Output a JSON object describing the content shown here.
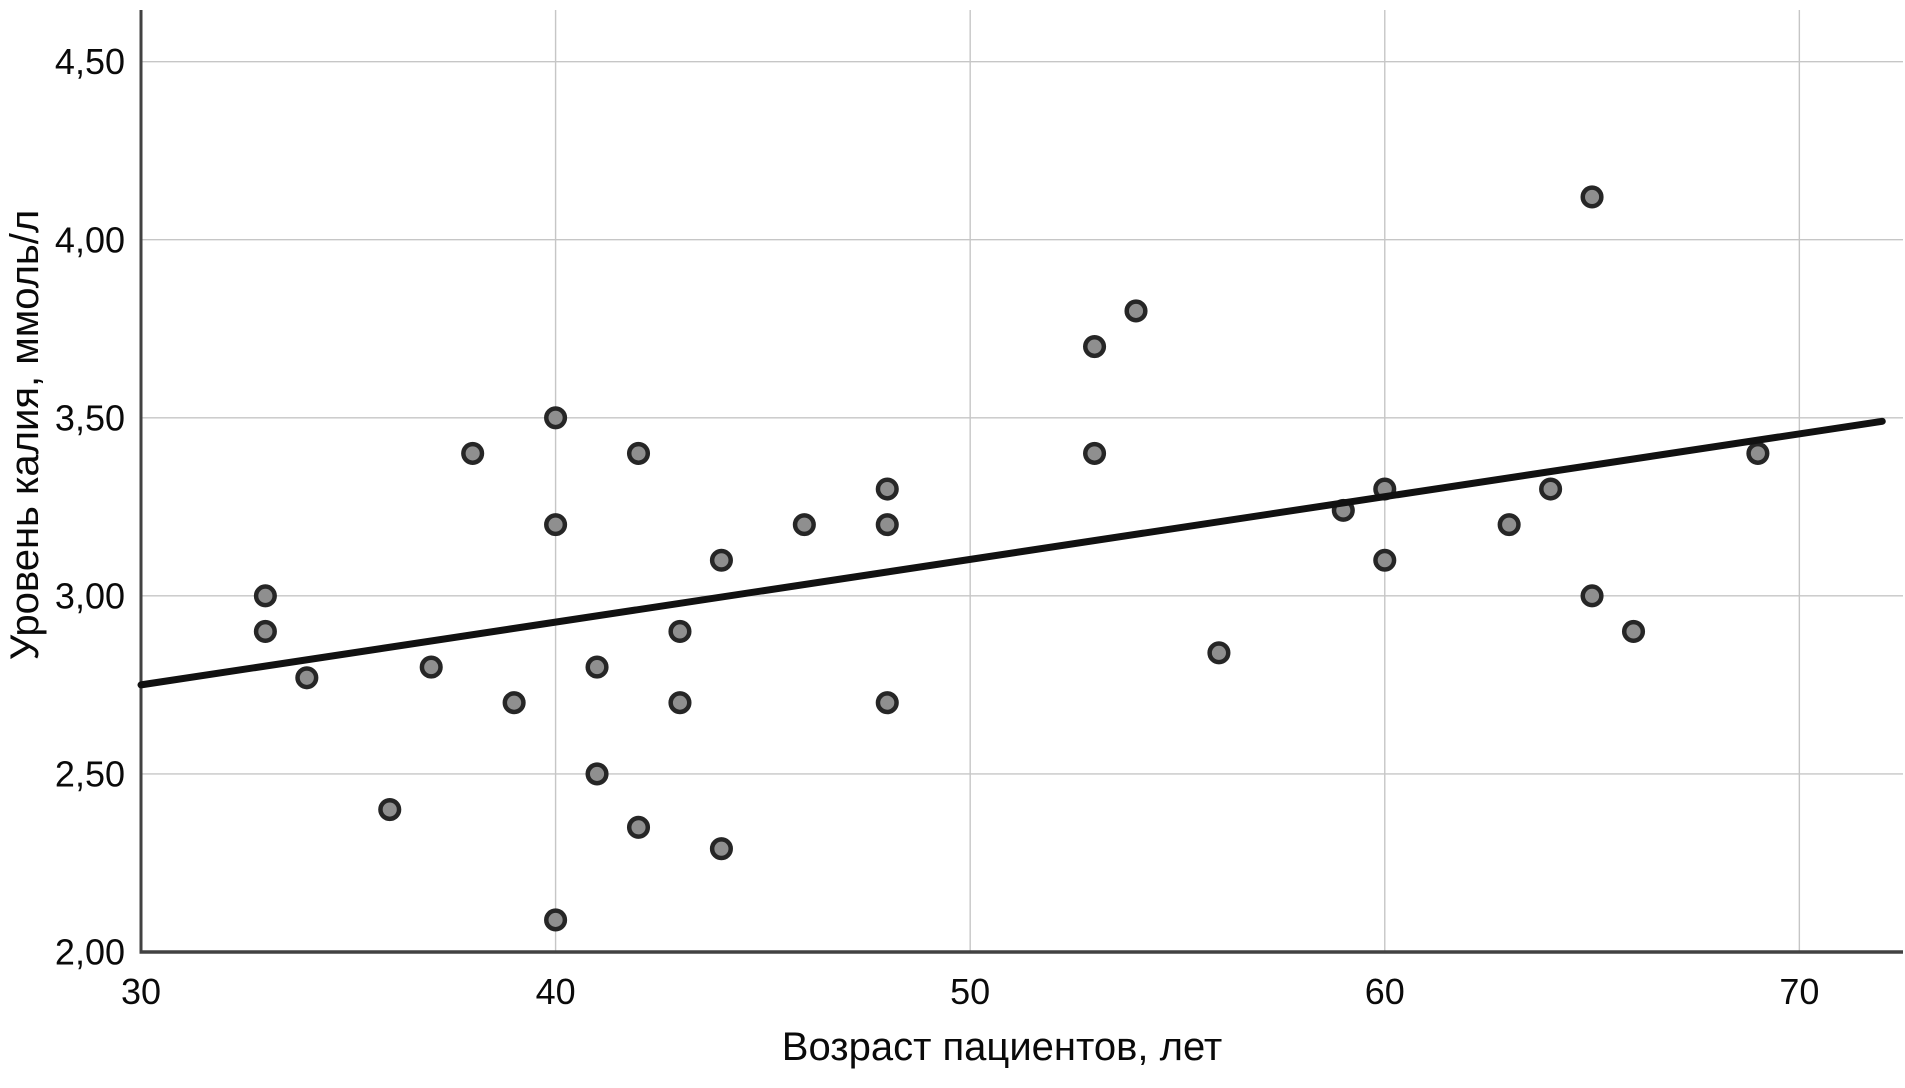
{
  "chart_data": {
    "type": "scatter",
    "title": "",
    "xlabel": "Возраст пациентов, лет",
    "ylabel": "Уровень калия, ммоль/л",
    "xlim": [
      30,
      72.5
    ],
    "ylim": [
      2.0,
      4.645
    ],
    "x_ticks": [
      30,
      40,
      50,
      60,
      70
    ],
    "x_tick_labels": [
      "30",
      "40",
      "50",
      "60",
      "70"
    ],
    "y_ticks": [
      2.0,
      2.5,
      3.0,
      3.5,
      4.0,
      4.5
    ],
    "y_tick_labels": [
      "2,00",
      "2,50",
      "3,00",
      "3,50",
      "4,00",
      "4,50"
    ],
    "grid": true,
    "legend": "none",
    "points": [
      [
        33,
        3.0
      ],
      [
        33,
        2.9
      ],
      [
        34,
        2.77
      ],
      [
        36,
        2.4
      ],
      [
        37,
        2.8
      ],
      [
        38,
        3.4
      ],
      [
        39,
        2.7
      ],
      [
        40,
        3.5
      ],
      [
        40,
        3.2
      ],
      [
        40,
        2.09
      ],
      [
        41,
        2.8
      ],
      [
        41,
        2.5
      ],
      [
        42,
        3.4
      ],
      [
        42,
        2.35
      ],
      [
        43,
        2.9
      ],
      [
        43,
        2.7
      ],
      [
        44,
        3.1
      ],
      [
        44,
        2.29
      ],
      [
        46,
        3.2
      ],
      [
        48,
        3.3
      ],
      [
        48,
        3.2
      ],
      [
        48,
        2.7
      ],
      [
        53,
        3.7
      ],
      [
        53,
        3.4
      ],
      [
        54,
        3.8
      ],
      [
        56,
        2.84
      ],
      [
        59,
        3.24
      ],
      [
        60,
        3.3
      ],
      [
        60,
        3.1
      ],
      [
        63,
        3.2
      ],
      [
        64,
        3.3
      ],
      [
        65,
        4.12
      ],
      [
        65,
        3.0
      ],
      [
        66,
        2.9
      ],
      [
        69,
        3.4
      ]
    ],
    "trend_line": {
      "x1": 30,
      "y1": 2.75,
      "x2": 72,
      "y2": 3.49
    },
    "colors": {
      "background": "#ffffff",
      "gridline": "#c6c6c6",
      "axis": "#424242",
      "point_fill": "#8f8f8f",
      "point_stroke": "#262626",
      "trend_line": "#111111",
      "text": "#0a0a0a"
    }
  }
}
